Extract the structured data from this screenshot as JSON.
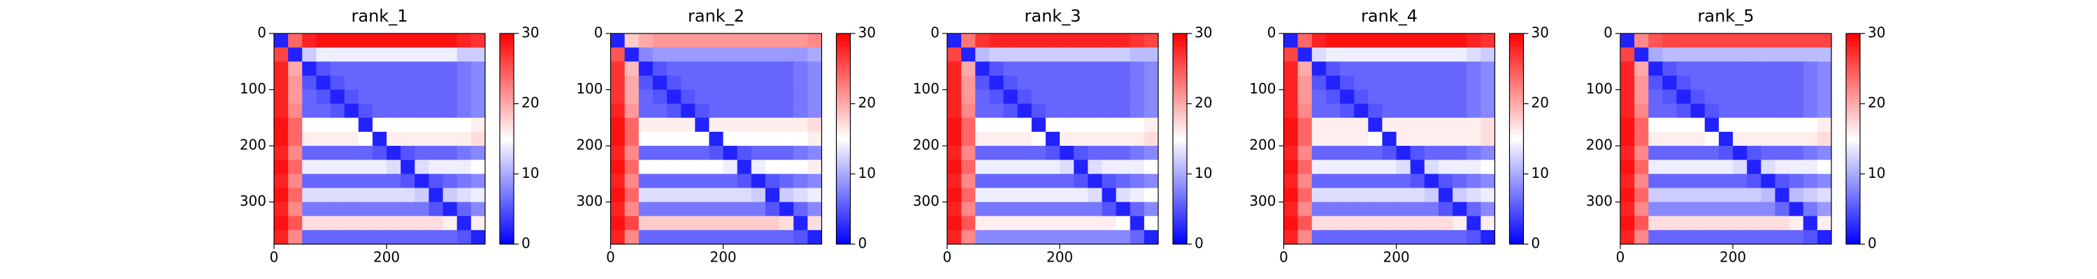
{
  "chart_data": [
    {
      "type": "heatmap",
      "title": "rank_1",
      "colormap": "bwr",
      "clim": [
        0,
        30
      ],
      "cticks": [
        0,
        10,
        20,
        30
      ],
      "xlim": [
        0,
        375
      ],
      "ylim": [
        375,
        0
      ],
      "xticks": [
        0,
        200
      ],
      "yticks": [
        0,
        100,
        200,
        300
      ],
      "values": [
        [
          2,
          24,
          28,
          29,
          29,
          29,
          29,
          29,
          29,
          29,
          29,
          29,
          29,
          28,
          27
        ],
        [
          26,
          2,
          12,
          14,
          14,
          14,
          14,
          14,
          14,
          14,
          14,
          14,
          14,
          12,
          12
        ],
        [
          28,
          20,
          2,
          5,
          6,
          6,
          6,
          6,
          6,
          6,
          6,
          6,
          6,
          7,
          8
        ],
        [
          28,
          21,
          5,
          2,
          5,
          6,
          6,
          6,
          6,
          6,
          6,
          6,
          6,
          7,
          8
        ],
        [
          28,
          21,
          6,
          5,
          2,
          5,
          6,
          6,
          6,
          6,
          6,
          6,
          6,
          7,
          8
        ],
        [
          28,
          22,
          6,
          6,
          5,
          2,
          5,
          6,
          6,
          6,
          6,
          6,
          6,
          7,
          8
        ],
        [
          29,
          24,
          15,
          15,
          15,
          15,
          2,
          15,
          15,
          15,
          15,
          15,
          15,
          15,
          16
        ],
        [
          29,
          24,
          16,
          16,
          16,
          16,
          15,
          2,
          16,
          16,
          16,
          16,
          16,
          16,
          17
        ],
        [
          28,
          22,
          6,
          6,
          6,
          6,
          6,
          5,
          2,
          5,
          6,
          6,
          6,
          7,
          8
        ],
        [
          29,
          24,
          14,
          14,
          14,
          14,
          14,
          14,
          13,
          2,
          13,
          14,
          14,
          14,
          15
        ],
        [
          28,
          22,
          6,
          6,
          6,
          6,
          6,
          6,
          6,
          5,
          2,
          5,
          6,
          7,
          8
        ],
        [
          29,
          24,
          13,
          13,
          13,
          13,
          13,
          13,
          13,
          13,
          12,
          2,
          12,
          13,
          14
        ],
        [
          28,
          22,
          7,
          7,
          7,
          7,
          7,
          7,
          7,
          7,
          7,
          5,
          2,
          6,
          8
        ],
        [
          29,
          25,
          17,
          17,
          17,
          17,
          17,
          17,
          17,
          17,
          17,
          17,
          16,
          2,
          16
        ],
        [
          28,
          22,
          6,
          6,
          6,
          6,
          6,
          6,
          6,
          6,
          6,
          6,
          6,
          5,
          2
        ]
      ]
    },
    {
      "type": "heatmap",
      "title": "rank_2",
      "colormap": "bwr",
      "clim": [
        0,
        30
      ],
      "cticks": [
        0,
        10,
        20,
        30
      ],
      "xlim": [
        0,
        375
      ],
      "ylim": [
        375,
        0
      ],
      "xticks": [
        0,
        200
      ],
      "yticks": [
        0,
        100,
        200,
        300
      ],
      "values": [
        [
          2,
          18,
          20,
          21,
          21,
          21,
          21,
          21,
          21,
          21,
          21,
          21,
          21,
          21,
          22
        ],
        [
          25,
          2,
          8,
          9,
          9,
          9,
          9,
          9,
          9,
          9,
          9,
          9,
          9,
          9,
          10
        ],
        [
          27,
          19,
          2,
          5,
          6,
          6,
          6,
          6,
          6,
          6,
          6,
          6,
          6,
          7,
          8
        ],
        [
          27,
          20,
          5,
          2,
          5,
          6,
          6,
          6,
          6,
          6,
          6,
          6,
          6,
          7,
          8
        ],
        [
          27,
          20,
          6,
          5,
          2,
          5,
          6,
          6,
          6,
          6,
          6,
          6,
          6,
          7,
          8
        ],
        [
          28,
          21,
          6,
          6,
          5,
          2,
          5,
          6,
          6,
          6,
          6,
          6,
          6,
          7,
          8
        ],
        [
          29,
          24,
          16,
          16,
          16,
          16,
          2,
          16,
          16,
          16,
          16,
          16,
          16,
          16,
          17
        ],
        [
          29,
          24,
          15,
          15,
          15,
          15,
          15,
          2,
          15,
          15,
          15,
          15,
          15,
          15,
          16
        ],
        [
          28,
          22,
          6,
          6,
          6,
          6,
          6,
          5,
          2,
          5,
          6,
          6,
          6,
          7,
          8
        ],
        [
          29,
          24,
          15,
          15,
          15,
          15,
          15,
          15,
          14,
          2,
          14,
          15,
          15,
          15,
          16
        ],
        [
          28,
          22,
          6,
          6,
          6,
          6,
          6,
          6,
          6,
          5,
          2,
          5,
          6,
          7,
          8
        ],
        [
          29,
          24,
          13,
          13,
          13,
          13,
          13,
          13,
          13,
          13,
          12,
          2,
          12,
          13,
          14
        ],
        [
          28,
          22,
          7,
          7,
          7,
          7,
          7,
          7,
          7,
          7,
          7,
          5,
          2,
          6,
          8
        ],
        [
          29,
          26,
          18,
          18,
          18,
          18,
          18,
          18,
          18,
          18,
          18,
          18,
          17,
          2,
          17
        ],
        [
          28,
          22,
          6,
          6,
          6,
          6,
          6,
          6,
          6,
          6,
          6,
          6,
          6,
          5,
          2
        ]
      ]
    },
    {
      "type": "heatmap",
      "title": "rank_3",
      "colormap": "bwr",
      "clim": [
        0,
        30
      ],
      "cticks": [
        0,
        10,
        20,
        30
      ],
      "xlim": [
        0,
        375
      ],
      "ylim": [
        375,
        0
      ],
      "xticks": [
        0,
        200
      ],
      "yticks": [
        0,
        100,
        200,
        300
      ],
      "values": [
        [
          2,
          23,
          27,
          28,
          28,
          28,
          28,
          28,
          28,
          28,
          28,
          28,
          28,
          27,
          26
        ],
        [
          26,
          2,
          11,
          12,
          12,
          12,
          12,
          12,
          12,
          12,
          12,
          12,
          12,
          11,
          11
        ],
        [
          28,
          20,
          2,
          5,
          6,
          6,
          6,
          6,
          6,
          6,
          6,
          6,
          6,
          7,
          8
        ],
        [
          28,
          21,
          5,
          2,
          5,
          6,
          6,
          6,
          6,
          6,
          6,
          6,
          6,
          7,
          8
        ],
        [
          28,
          21,
          6,
          5,
          2,
          5,
          6,
          6,
          6,
          6,
          6,
          6,
          6,
          7,
          8
        ],
        [
          28,
          22,
          6,
          6,
          5,
          2,
          5,
          6,
          6,
          6,
          6,
          6,
          6,
          7,
          8
        ],
        [
          29,
          24,
          15,
          15,
          15,
          15,
          2,
          15,
          15,
          15,
          15,
          15,
          15,
          15,
          16
        ],
        [
          29,
          24,
          16,
          16,
          16,
          16,
          15,
          2,
          16,
          16,
          16,
          16,
          16,
          16,
          17
        ],
        [
          28,
          22,
          6,
          6,
          6,
          6,
          6,
          5,
          2,
          5,
          6,
          6,
          6,
          7,
          8
        ],
        [
          29,
          24,
          14,
          14,
          14,
          14,
          14,
          14,
          13,
          2,
          13,
          14,
          14,
          14,
          15
        ],
        [
          28,
          22,
          6,
          6,
          6,
          6,
          6,
          6,
          6,
          5,
          2,
          5,
          6,
          7,
          8
        ],
        [
          29,
          24,
          14,
          14,
          14,
          14,
          14,
          14,
          14,
          14,
          13,
          2,
          13,
          14,
          15
        ],
        [
          28,
          22,
          7,
          7,
          7,
          7,
          7,
          7,
          7,
          7,
          7,
          5,
          2,
          6,
          8
        ],
        [
          29,
          25,
          16,
          16,
          16,
          16,
          16,
          16,
          16,
          16,
          16,
          16,
          15,
          2,
          15
        ],
        [
          28,
          22,
          8,
          8,
          8,
          8,
          8,
          8,
          8,
          8,
          8,
          8,
          8,
          6,
          2
        ]
      ]
    },
    {
      "type": "heatmap",
      "title": "rank_4",
      "colormap": "bwr",
      "clim": [
        0,
        30
      ],
      "cticks": [
        0,
        10,
        20,
        30
      ],
      "xlim": [
        0,
        375
      ],
      "ylim": [
        375,
        0
      ],
      "xticks": [
        0,
        200
      ],
      "yticks": [
        0,
        100,
        200,
        300
      ],
      "values": [
        [
          2,
          24,
          28,
          29,
          29,
          29,
          29,
          29,
          29,
          29,
          29,
          29,
          29,
          28,
          27
        ],
        [
          26,
          2,
          13,
          14,
          14,
          14,
          14,
          14,
          14,
          14,
          14,
          14,
          14,
          13,
          12
        ],
        [
          28,
          20,
          2,
          5,
          6,
          6,
          6,
          6,
          6,
          6,
          6,
          6,
          6,
          7,
          8
        ],
        [
          28,
          21,
          5,
          2,
          5,
          6,
          6,
          6,
          6,
          6,
          6,
          6,
          6,
          7,
          8
        ],
        [
          28,
          21,
          6,
          5,
          2,
          5,
          6,
          6,
          6,
          6,
          6,
          6,
          6,
          7,
          8
        ],
        [
          28,
          22,
          6,
          6,
          5,
          2,
          5,
          6,
          6,
          6,
          6,
          6,
          6,
          7,
          8
        ],
        [
          29,
          24,
          16,
          16,
          16,
          16,
          2,
          16,
          16,
          16,
          16,
          16,
          16,
          16,
          17
        ],
        [
          29,
          24,
          16,
          16,
          16,
          16,
          15,
          2,
          16,
          16,
          16,
          16,
          16,
          16,
          17
        ],
        [
          28,
          22,
          6,
          6,
          6,
          6,
          6,
          5,
          2,
          5,
          6,
          6,
          6,
          7,
          8
        ],
        [
          29,
          24,
          14,
          14,
          14,
          14,
          14,
          14,
          13,
          2,
          13,
          14,
          14,
          14,
          15
        ],
        [
          28,
          22,
          6,
          6,
          6,
          6,
          6,
          6,
          6,
          5,
          2,
          5,
          6,
          7,
          8
        ],
        [
          29,
          24,
          13,
          13,
          13,
          13,
          13,
          13,
          13,
          13,
          12,
          2,
          12,
          13,
          14
        ],
        [
          28,
          22,
          7,
          7,
          7,
          7,
          7,
          7,
          7,
          7,
          7,
          5,
          2,
          6,
          8
        ],
        [
          29,
          25,
          17,
          17,
          17,
          17,
          17,
          17,
          17,
          17,
          17,
          17,
          16,
          2,
          16
        ],
        [
          28,
          22,
          6,
          6,
          6,
          6,
          6,
          6,
          6,
          6,
          6,
          6,
          6,
          5,
          2
        ]
      ]
    },
    {
      "type": "heatmap",
      "title": "rank_5",
      "colormap": "bwr",
      "clim": [
        0,
        30
      ],
      "cticks": [
        0,
        10,
        20,
        30
      ],
      "xlim": [
        0,
        375
      ],
      "ylim": [
        375,
        0
      ],
      "xticks": [
        0,
        200
      ],
      "yticks": [
        0,
        100,
        200,
        300
      ],
      "values": [
        [
          2,
          22,
          25,
          26,
          26,
          26,
          26,
          26,
          26,
          26,
          26,
          26,
          26,
          26,
          26
        ],
        [
          26,
          2,
          10,
          11,
          11,
          11,
          11,
          11,
          11,
          11,
          11,
          11,
          11,
          11,
          11
        ],
        [
          28,
          20,
          2,
          5,
          6,
          6,
          6,
          6,
          6,
          6,
          6,
          6,
          6,
          7,
          8
        ],
        [
          28,
          21,
          5,
          2,
          5,
          6,
          6,
          6,
          6,
          6,
          6,
          6,
          6,
          7,
          8
        ],
        [
          28,
          21,
          6,
          5,
          2,
          5,
          6,
          6,
          6,
          6,
          6,
          6,
          6,
          7,
          8
        ],
        [
          28,
          22,
          6,
          6,
          5,
          2,
          5,
          6,
          6,
          6,
          6,
          6,
          6,
          7,
          8
        ],
        [
          29,
          24,
          15,
          15,
          15,
          15,
          2,
          15,
          15,
          15,
          15,
          15,
          15,
          15,
          16
        ],
        [
          29,
          24,
          16,
          16,
          16,
          16,
          15,
          2,
          16,
          16,
          16,
          16,
          16,
          16,
          17
        ],
        [
          28,
          22,
          6,
          6,
          6,
          6,
          6,
          5,
          2,
          5,
          6,
          6,
          6,
          7,
          8
        ],
        [
          29,
          24,
          14,
          14,
          14,
          14,
          14,
          14,
          13,
          2,
          13,
          14,
          14,
          14,
          15
        ],
        [
          28,
          22,
          6,
          6,
          6,
          6,
          6,
          6,
          6,
          5,
          2,
          5,
          6,
          7,
          8
        ],
        [
          29,
          24,
          12,
          12,
          12,
          12,
          12,
          12,
          12,
          12,
          11,
          2,
          11,
          12,
          13
        ],
        [
          28,
          22,
          8,
          8,
          8,
          8,
          8,
          8,
          8,
          8,
          8,
          6,
          2,
          7,
          9
        ],
        [
          29,
          25,
          17,
          17,
          17,
          17,
          17,
          17,
          17,
          17,
          17,
          17,
          16,
          2,
          16
        ],
        [
          28,
          22,
          6,
          6,
          6,
          6,
          6,
          6,
          6,
          6,
          6,
          6,
          6,
          5,
          2
        ]
      ]
    }
  ]
}
